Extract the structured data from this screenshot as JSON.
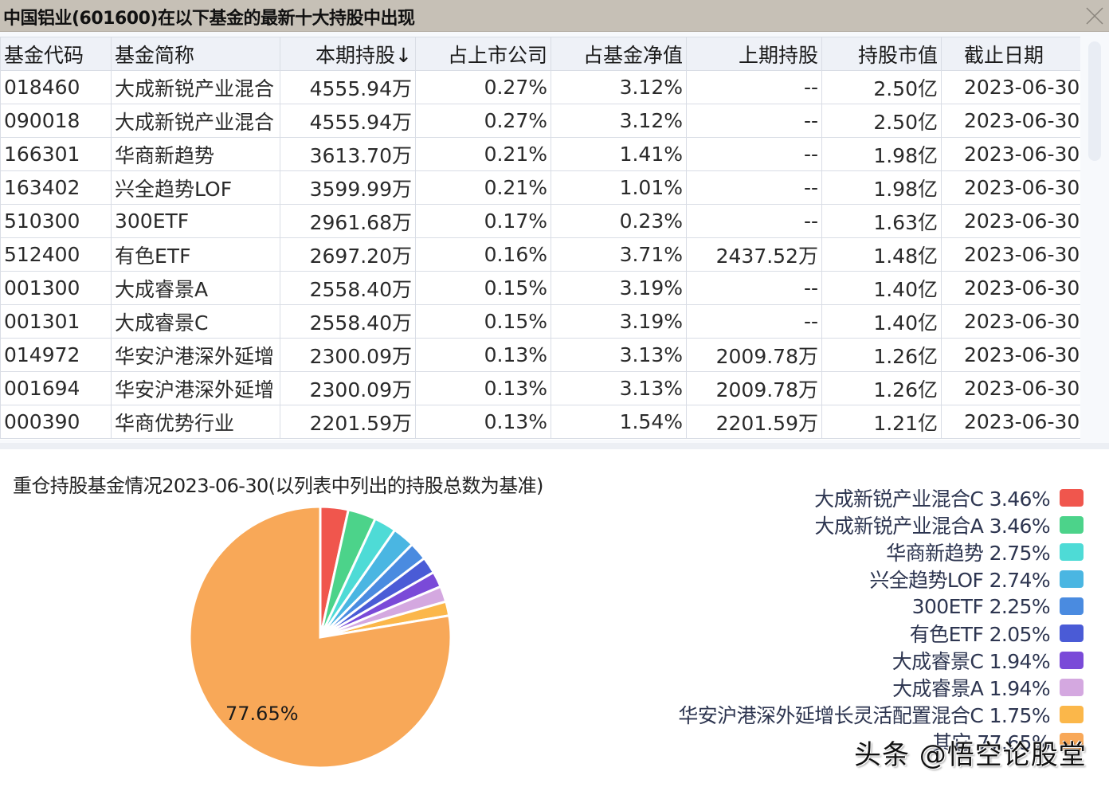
{
  "window": {
    "title": "中国铝业(601600)在以下基金的最新十大持股中出现",
    "close_icon": "close-icon"
  },
  "table": {
    "columns": [
      {
        "label": "基金代码",
        "align": "left"
      },
      {
        "label": "基金简称",
        "align": "left"
      },
      {
        "label": "本期持股↓",
        "align": "right"
      },
      {
        "label": "占上市公司",
        "align": "right"
      },
      {
        "label": "占基金净值",
        "align": "right"
      },
      {
        "label": "上期持股",
        "align": "right"
      },
      {
        "label": "持股市值",
        "align": "right"
      },
      {
        "label": "截止日期",
        "align": "right"
      }
    ],
    "rows": [
      [
        "018460",
        "大成新锐产业混合",
        "4555.94万",
        "0.27%",
        "3.12%",
        "--",
        "2.50亿",
        "2023-06-30"
      ],
      [
        "090018",
        "大成新锐产业混合",
        "4555.94万",
        "0.27%",
        "3.12%",
        "--",
        "2.50亿",
        "2023-06-30"
      ],
      [
        "166301",
        "华商新趋势",
        "3613.70万",
        "0.21%",
        "1.41%",
        "--",
        "1.98亿",
        "2023-06-30"
      ],
      [
        "163402",
        "兴全趋势LOF",
        "3599.99万",
        "0.21%",
        "1.01%",
        "--",
        "1.98亿",
        "2023-06-30"
      ],
      [
        "510300",
        "300ETF",
        "2961.68万",
        "0.17%",
        "0.23%",
        "--",
        "1.63亿",
        "2023-06-30"
      ],
      [
        "512400",
        "有色ETF",
        "2697.20万",
        "0.16%",
        "3.71%",
        "2437.52万",
        "1.48亿",
        "2023-06-30"
      ],
      [
        "001300",
        "大成睿景A",
        "2558.40万",
        "0.15%",
        "3.19%",
        "--",
        "1.40亿",
        "2023-06-30"
      ],
      [
        "001301",
        "大成睿景C",
        "2558.40万",
        "0.15%",
        "3.19%",
        "--",
        "1.40亿",
        "2023-06-30"
      ],
      [
        "014972",
        "华安沪港深外延增",
        "2300.09万",
        "0.13%",
        "3.13%",
        "2009.78万",
        "1.26亿",
        "2023-06-30"
      ],
      [
        "001694",
        "华安沪港深外延增",
        "2300.09万",
        "0.13%",
        "3.13%",
        "2009.78万",
        "1.26亿",
        "2023-06-30"
      ],
      [
        "000390",
        "华商优势行业",
        "2201.59万",
        "0.13%",
        "1.54%",
        "2201.59万",
        "1.21亿",
        "2023-06-30"
      ]
    ]
  },
  "chart": {
    "title": "重仓持股基金情况2023-06-30(以列表中列出的持股总数为基准)",
    "inner_label": "77.65%"
  },
  "legend": [
    {
      "label": "大成新锐产业混合C 3.46%",
      "color": "#f0564d"
    },
    {
      "label": "大成新锐产业混合A 3.46%",
      "color": "#4cd38a"
    },
    {
      "label": "华商新趋势 2.75%",
      "color": "#4edbd6"
    },
    {
      "label": "兴全趋势LOF 2.74%",
      "color": "#4ab6e2"
    },
    {
      "label": "300ETF 2.25%",
      "color": "#4a8be0"
    },
    {
      "label": "有色ETF 2.05%",
      "color": "#4a5bd6"
    },
    {
      "label": "大成睿景C 1.94%",
      "color": "#7a4ad8"
    },
    {
      "label": "大成睿景A 1.94%",
      "color": "#d4a8e0"
    },
    {
      "label": "华安沪港深外延增长灵活配置混合C 1.75%",
      "color": "#fbb74a"
    },
    {
      "label": "其它 77.65%",
      "color": "#f8a858"
    }
  ],
  "watermark": "头条 @悟空论股堂",
  "chart_data": {
    "type": "pie",
    "title": "重仓持股基金情况2023-06-30(以列表中列出的持股总数为基准)",
    "categories": [
      "大成新锐产业混合C",
      "大成新锐产业混合A",
      "华商新趋势",
      "兴全趋势LOF",
      "300ETF",
      "有色ETF",
      "大成睿景C",
      "大成睿景A",
      "华安沪港深外延增长灵活配置混合C",
      "其它"
    ],
    "values": [
      3.46,
      3.46,
      2.75,
      2.74,
      2.25,
      2.05,
      1.94,
      1.94,
      1.75,
      77.65
    ],
    "colors": [
      "#f0564d",
      "#4cd38a",
      "#4edbd6",
      "#4ab6e2",
      "#4a8be0",
      "#4a5bd6",
      "#7a4ad8",
      "#d4a8e0",
      "#fbb74a",
      "#f8a858"
    ],
    "unit": "%",
    "start_angle": "12 o'clock, clockwise",
    "data_labels": [
      "77.65%"
    ],
    "legend_position": "right"
  }
}
